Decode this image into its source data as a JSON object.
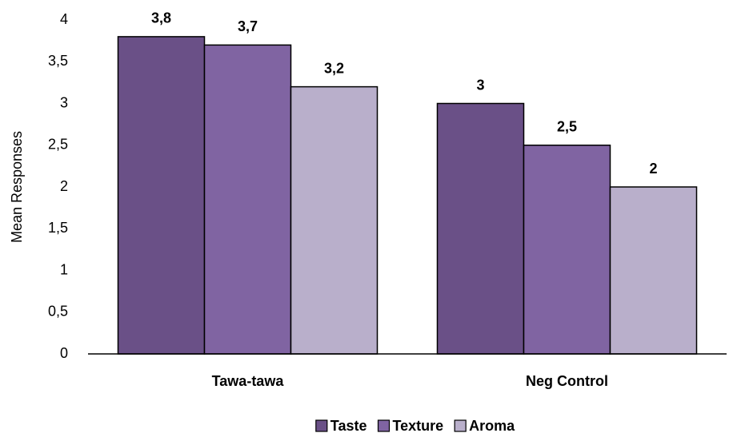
{
  "chart_data": {
    "type": "bar",
    "y_label": "Mean Responses",
    "categories": [
      "Tawa-tawa",
      "Neg Control"
    ],
    "series": [
      {
        "name": "Taste",
        "color": "#6a5087",
        "values": [
          3.8,
          3
        ],
        "value_labels": [
          "3,8",
          "3"
        ]
      },
      {
        "name": "Texture",
        "color": "#8064a2",
        "values": [
          3.7,
          2.5
        ],
        "value_labels": [
          "3,7",
          "2,5"
        ]
      },
      {
        "name": "Aroma",
        "color": "#b9afcb",
        "values": [
          3.2,
          2
        ],
        "value_labels": [
          "3,2",
          "2"
        ]
      }
    ],
    "ylim": [
      0,
      4
    ],
    "yticks": [
      0,
      {
        "value": 0.5,
        "label": "0,5"
      },
      1,
      {
        "value": 1.5,
        "label": "1,5"
      },
      2,
      {
        "value": 2.5,
        "label": "2,5"
      },
      3,
      {
        "value": 3.5,
        "label": "3,5"
      },
      4
    ],
    "grid": false,
    "legend": "bottom"
  }
}
